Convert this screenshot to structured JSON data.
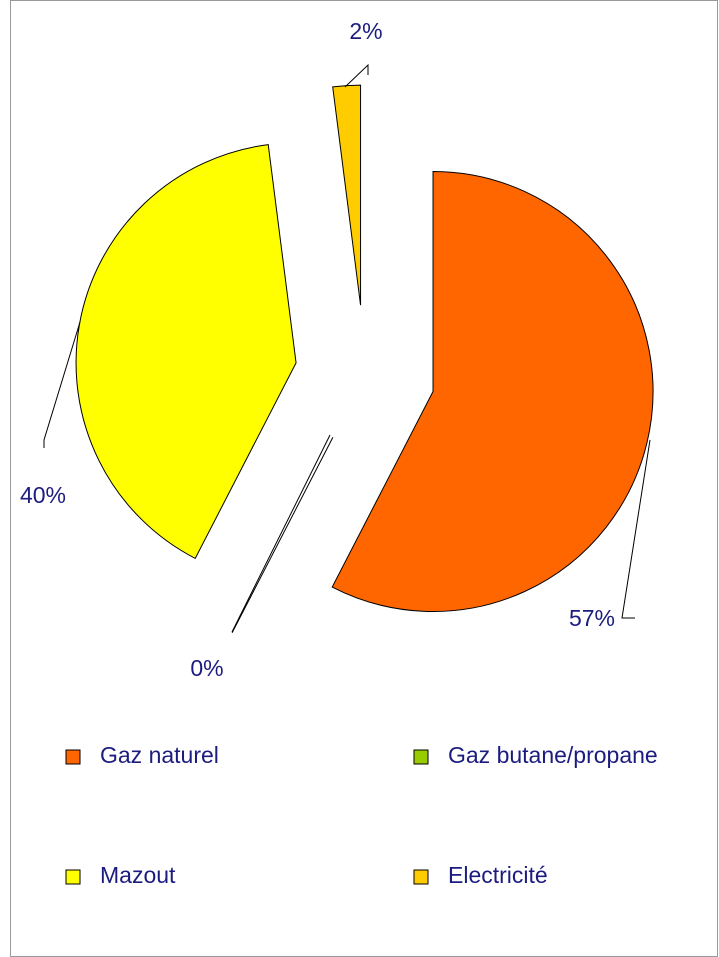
{
  "chart_data": {
    "type": "pie",
    "categories": [
      "Gaz naturel",
      "Gaz butane/propane",
      "Mazout",
      "Electricité"
    ],
    "values": [
      57,
      0,
      40,
      2
    ],
    "value_labels": [
      "57%",
      "0%",
      "40%",
      "2%"
    ],
    "colors": [
      "#ff6600",
      "#99cc00",
      "#ffff00",
      "#ffcc00"
    ],
    "legend": "bottom"
  }
}
